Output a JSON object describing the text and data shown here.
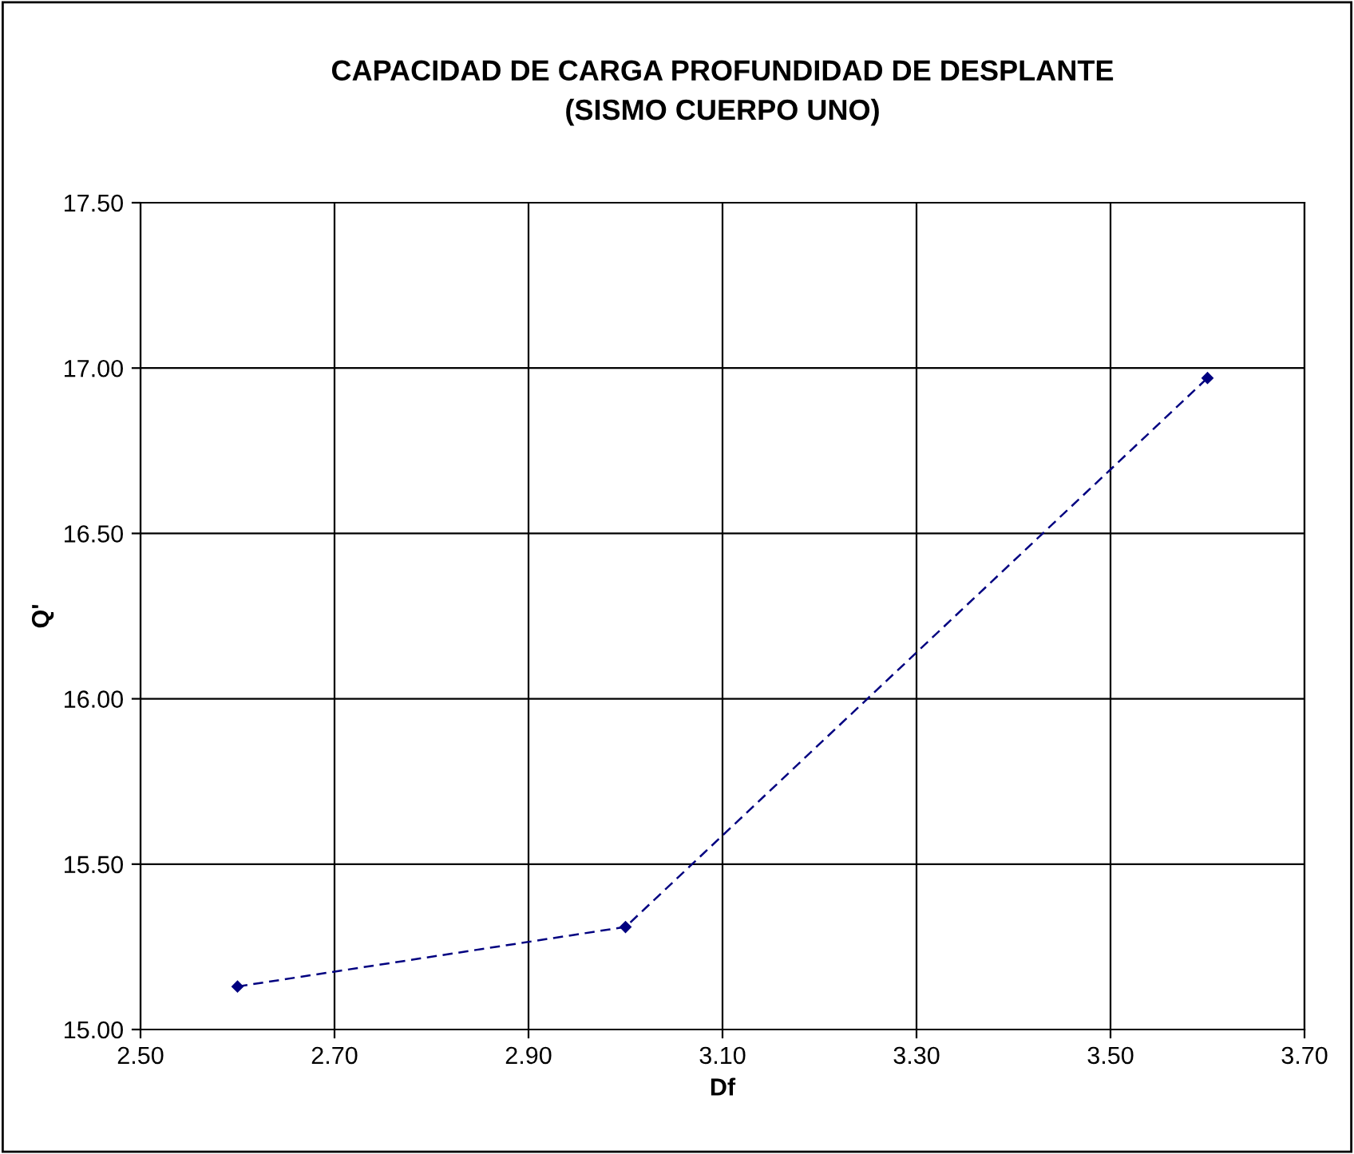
{
  "chart_data": {
    "type": "line",
    "title": "CAPACIDAD DE CARGA PROFUNDIDAD DE DESPLANTE\n(SISMO CUERPO UNO)",
    "xlabel": "Df",
    "ylabel": "Q'",
    "x": [
      2.6,
      3.0,
      3.6
    ],
    "series": [
      {
        "color": "#000080",
        "values": [
          15.13,
          15.31,
          16.97
        ]
      }
    ],
    "xlim": [
      2.5,
      3.7
    ],
    "xticks": [
      {
        "value": 2.5,
        "label": "2.50"
      },
      {
        "value": 2.7,
        "label": "2.70"
      },
      {
        "value": 2.9,
        "label": "2.90"
      },
      {
        "value": 3.1,
        "label": "3.10"
      },
      {
        "value": 3.3,
        "label": "3.30"
      },
      {
        "value": 3.5,
        "label": "3.50"
      },
      {
        "value": 3.7,
        "label": "3.70"
      }
    ],
    "ylim": [
      15.0,
      17.5
    ],
    "yticks": [
      {
        "value": 15.0,
        "label": "15.00"
      },
      {
        "value": 15.5,
        "label": "15.50"
      },
      {
        "value": 16.0,
        "label": "16.00"
      },
      {
        "value": 16.5,
        "label": "16.50"
      },
      {
        "value": 17.0,
        "label": "17.00"
      },
      {
        "value": 17.5,
        "label": "17.50"
      }
    ],
    "grid": true,
    "marker": "diamond",
    "line_style": "dashed",
    "legend": false
  }
}
